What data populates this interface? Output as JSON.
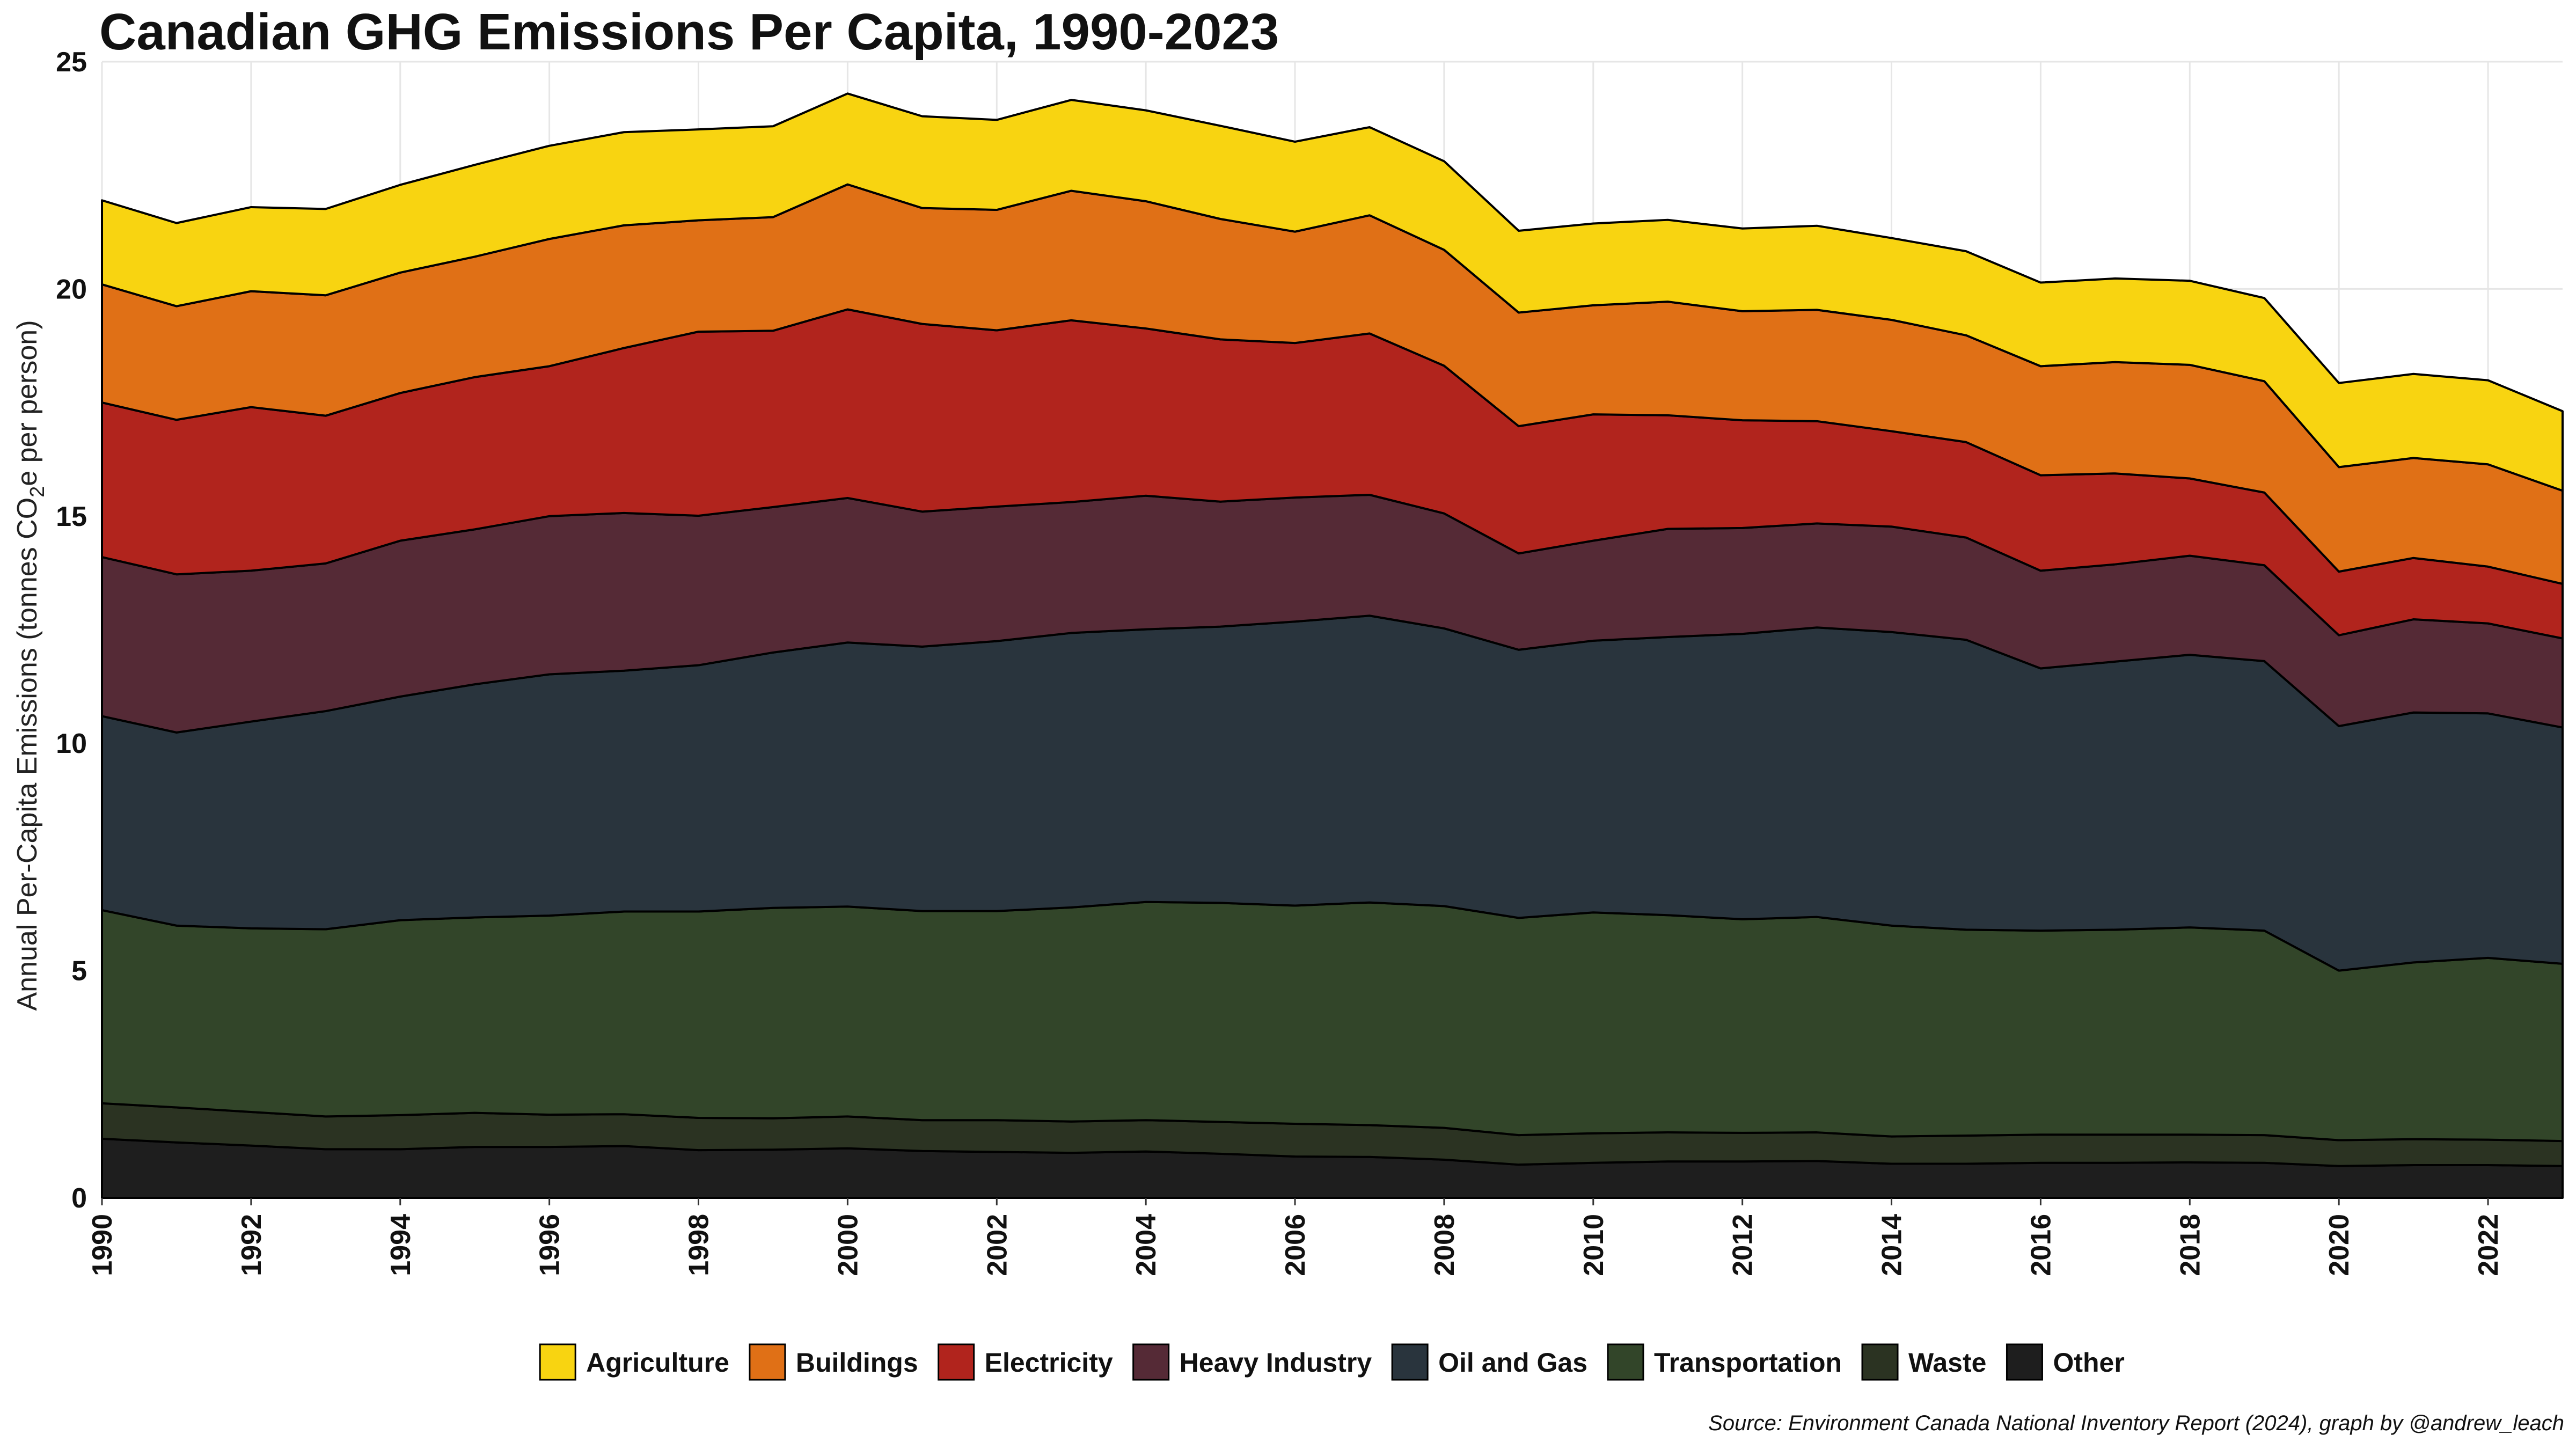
{
  "chart_data": {
    "type": "area",
    "title": "Canadian GHG Emissions Per Capita, 1990-2023",
    "ylabel_main": "Annual Per-Capita Emissions  (tonnes CO",
    "ylabel_sub": "2",
    "ylabel_end": "e per person)",
    "caption": "Source: Environment Canada National Inventory Report (2024), graph by @andrew_leach",
    "ylim": [
      0,
      25
    ],
    "xlim": [
      1990,
      2023
    ],
    "y_ticks": [
      0,
      5,
      10,
      15,
      20,
      25
    ],
    "x_ticks": [
      1990,
      1992,
      1994,
      1996,
      1998,
      2000,
      2002,
      2004,
      2006,
      2008,
      2010,
      2012,
      2014,
      2016,
      2018,
      2020,
      2022
    ],
    "legend_position": "bottom",
    "grid": true,
    "years": [
      1990,
      1991,
      1992,
      1993,
      1994,
      1995,
      1996,
      1997,
      1998,
      1999,
      2000,
      2001,
      2002,
      2003,
      2004,
      2005,
      2006,
      2007,
      2008,
      2009,
      2010,
      2011,
      2012,
      2013,
      2014,
      2015,
      2016,
      2017,
      2018,
      2019,
      2020,
      2021,
      2022,
      2023
    ],
    "series": [
      {
        "name": "Other",
        "color": "#1e1e1e",
        "values": [
          1.3,
          1.22,
          1.15,
          1.07,
          1.07,
          1.12,
          1.12,
          1.14,
          1.05,
          1.06,
          1.09,
          1.03,
          1.01,
          0.99,
          1.02,
          0.97,
          0.91,
          0.9,
          0.84,
          0.73,
          0.77,
          0.8,
          0.8,
          0.81,
          0.75,
          0.75,
          0.77,
          0.77,
          0.78,
          0.77,
          0.7,
          0.72,
          0.72,
          0.7
        ]
      },
      {
        "name": "Waste",
        "color": "#2b3322",
        "values": [
          0.78,
          0.77,
          0.74,
          0.72,
          0.75,
          0.75,
          0.71,
          0.7,
          0.71,
          0.69,
          0.7,
          0.68,
          0.7,
          0.69,
          0.69,
          0.7,
          0.72,
          0.7,
          0.7,
          0.65,
          0.65,
          0.64,
          0.63,
          0.63,
          0.6,
          0.62,
          0.62,
          0.62,
          0.61,
          0.61,
          0.57,
          0.57,
          0.56,
          0.55
        ]
      },
      {
        "name": "Transportation",
        "color": "#324529",
        "values": [
          4.25,
          4.0,
          4.04,
          4.12,
          4.29,
          4.3,
          4.38,
          4.46,
          4.54,
          4.63,
          4.62,
          4.6,
          4.6,
          4.71,
          4.8,
          4.82,
          4.8,
          4.9,
          4.88,
          4.78,
          4.86,
          4.78,
          4.7,
          4.74,
          4.64,
          4.53,
          4.49,
          4.51,
          4.56,
          4.5,
          3.73,
          3.89,
          4.0,
          3.9
        ]
      },
      {
        "name": "Oil and Gas",
        "color": "#29343d",
        "values": [
          4.27,
          4.25,
          4.55,
          4.8,
          4.92,
          5.13,
          5.31,
          5.3,
          5.42,
          5.62,
          5.81,
          5.82,
          5.94,
          6.04,
          6.0,
          6.08,
          6.25,
          6.31,
          6.11,
          5.9,
          5.98,
          6.12,
          6.28,
          6.37,
          6.46,
          6.38,
          5.77,
          5.9,
          6.0,
          5.93,
          5.38,
          5.5,
          5.38,
          5.2
        ]
      },
      {
        "name": "Heavy Industry",
        "color": "#552a36",
        "values": [
          3.5,
          3.48,
          3.32,
          3.25,
          3.43,
          3.41,
          3.48,
          3.47,
          3.29,
          3.2,
          3.18,
          2.97,
          2.96,
          2.88,
          2.94,
          2.75,
          2.73,
          2.66,
          2.53,
          2.12,
          2.2,
          2.38,
          2.33,
          2.29,
          2.32,
          2.25,
          2.15,
          2.14,
          2.18,
          2.11,
          2.0,
          2.05,
          1.98,
          1.96
        ]
      },
      {
        "name": "Electricity",
        "color": "#b1241d",
        "values": [
          3.4,
          3.4,
          3.6,
          3.25,
          3.25,
          3.35,
          3.3,
          3.63,
          4.05,
          3.88,
          4.15,
          4.13,
          3.88,
          4.0,
          3.68,
          3.57,
          3.4,
          3.55,
          3.25,
          2.8,
          2.78,
          2.5,
          2.37,
          2.25,
          2.1,
          2.1,
          2.1,
          2.0,
          1.7,
          1.6,
          1.4,
          1.35,
          1.25,
          1.2
        ]
      },
      {
        "name": "Buildings",
        "color": "#e07016",
        "values": [
          2.6,
          2.5,
          2.55,
          2.65,
          2.65,
          2.65,
          2.8,
          2.7,
          2.45,
          2.5,
          2.75,
          2.55,
          2.65,
          2.85,
          2.8,
          2.65,
          2.45,
          2.6,
          2.55,
          2.5,
          2.4,
          2.5,
          2.4,
          2.45,
          2.45,
          2.35,
          2.4,
          2.45,
          2.5,
          2.45,
          2.3,
          2.2,
          2.25,
          2.05
        ]
      },
      {
        "name": "Agriculture",
        "color": "#f8d411",
        "values": [
          1.85,
          1.83,
          1.85,
          1.9,
          1.93,
          2.02,
          2.05,
          2.05,
          2.0,
          2.0,
          2.0,
          2.02,
          1.98,
          2.0,
          2.0,
          2.05,
          1.98,
          1.94,
          1.95,
          1.8,
          1.8,
          1.8,
          1.82,
          1.85,
          1.8,
          1.85,
          1.84,
          1.84,
          1.85,
          1.83,
          1.85,
          1.85,
          1.85,
          1.75
        ]
      }
    ],
    "legend_order": [
      "Agriculture",
      "Buildings",
      "Electricity",
      "Heavy Industry",
      "Oil and Gas",
      "Transportation",
      "Waste",
      "Other"
    ]
  }
}
